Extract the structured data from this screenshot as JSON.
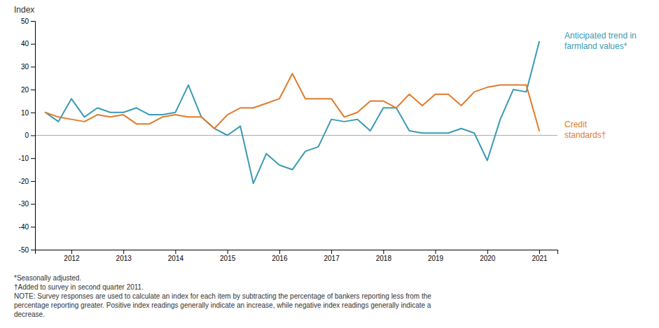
{
  "chart_data": {
    "type": "line",
    "y_label": "Index",
    "x": [
      2011.5,
      2011.75,
      2012.0,
      2012.25,
      2012.5,
      2012.75,
      2013.0,
      2013.25,
      2013.5,
      2013.75,
      2014.0,
      2014.25,
      2014.5,
      2014.75,
      2015.0,
      2015.25,
      2015.5,
      2015.75,
      2016.0,
      2016.25,
      2016.5,
      2016.75,
      2017.0,
      2017.25,
      2017.5,
      2017.75,
      2018.0,
      2018.25,
      2018.5,
      2018.75,
      2019.0,
      2019.25,
      2019.5,
      2019.75,
      2020.0,
      2020.25,
      2020.5,
      2020.75,
      2021.0
    ],
    "series": [
      {
        "name": "Anticipated trend in\nfarmland values*",
        "color": "#3a9ab2",
        "values": [
          10,
          6,
          16,
          8,
          12,
          10,
          10,
          12,
          9,
          9,
          10,
          22,
          8,
          3,
          0,
          4,
          -21,
          -8,
          -13,
          -15,
          -7,
          -5,
          7,
          6,
          7,
          2,
          12,
          12,
          2,
          1,
          1,
          1,
          3,
          1,
          -11,
          7,
          20,
          19,
          41
        ]
      },
      {
        "name": "Credit\nstandards†",
        "color": "#e07b2a",
        "values": [
          10,
          8,
          7,
          6,
          9,
          8,
          9,
          5,
          5,
          8,
          9,
          8,
          8,
          3,
          9,
          12,
          12,
          14,
          16,
          27,
          16,
          16,
          16,
          8,
          10,
          15,
          15,
          12,
          18,
          13,
          18,
          18,
          13,
          19,
          21,
          22,
          22,
          22,
          2
        ]
      }
    ],
    "xlim": [
      2011.3,
      2021.35
    ],
    "xticks": [
      2012,
      2013,
      2014,
      2015,
      2016,
      2017,
      2018,
      2019,
      2020,
      2021
    ],
    "ylim": [
      -50,
      50
    ],
    "yticks": [
      -50,
      -40,
      -30,
      -20,
      -10,
      0,
      10,
      20,
      30,
      40,
      50
    ],
    "grid": false,
    "notes": [
      "*Seasonally adjusted.",
      "†Added to survey in second quarter 2011.",
      "NOTE: Survey responses are used to calculate an index for each item by subtracting the percentage of bankers reporting less from the\npercentage reporting greater. Positive index readings generally indicate an increase, while negative index readings generally indicate a\ndecrease."
    ]
  }
}
